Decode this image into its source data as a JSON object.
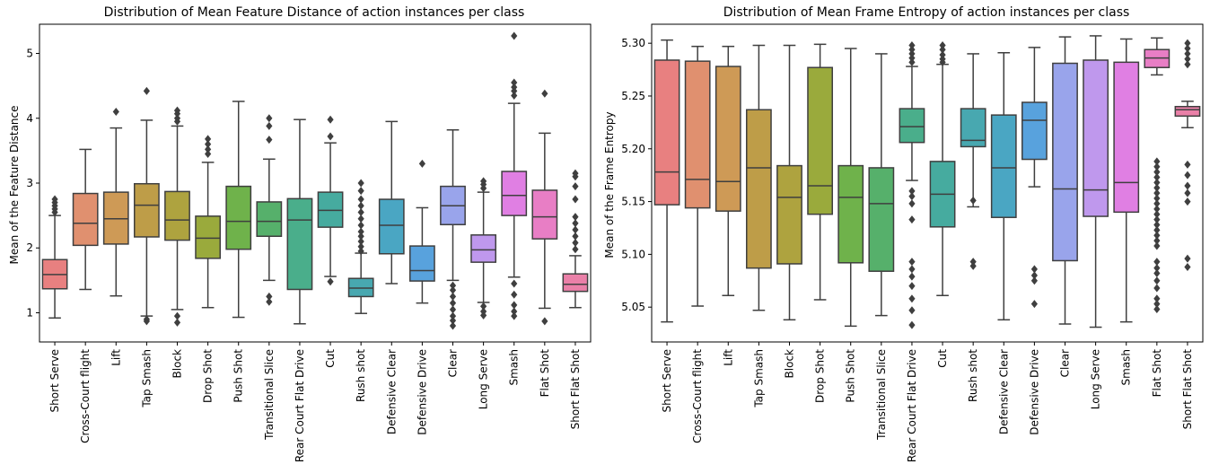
{
  "chart_data": [
    {
      "type": "box",
      "title": "Distribution of Mean Feature Distance of action instances per class",
      "xlabel": "",
      "ylabel": "Mean of the Feature Distance",
      "ylim": [
        0.55,
        5.45
      ],
      "yticks": [
        1,
        2,
        3,
        4,
        5
      ],
      "ytick_labels": [
        "1",
        "2",
        "3",
        "4",
        "5"
      ],
      "grid": false,
      "categories": [
        "Short Serve",
        "Cross-Court flight",
        "Lift",
        "Tap Smash",
        "Block",
        "Drop Shot",
        "Push Shot",
        "Transitional Slice",
        "Rear Court Flat Drive",
        "Cut",
        "Rush shot",
        "Defensive Clear",
        "Defensive Drive",
        "Clear",
        "Long Serve",
        "Smash",
        "Flat Shot",
        "Short Flat Shot"
      ],
      "boxes": [
        {
          "whislo": 0.92,
          "q1": 1.37,
          "med": 1.59,
          "q3": 1.82,
          "whishi": 2.5,
          "fliers": [
            2.55,
            2.6,
            2.65,
            2.7,
            2.75
          ]
        },
        {
          "whislo": 1.36,
          "q1": 2.04,
          "med": 2.38,
          "q3": 2.84,
          "whishi": 3.52,
          "fliers": []
        },
        {
          "whislo": 1.26,
          "q1": 2.06,
          "med": 2.45,
          "q3": 2.86,
          "whishi": 3.85,
          "fliers": [
            4.1
          ]
        },
        {
          "whislo": 0.95,
          "q1": 2.17,
          "med": 2.66,
          "q3": 2.99,
          "whishi": 3.97,
          "fliers": [
            4.42,
            0.9,
            0.87
          ]
        },
        {
          "whislo": 1.05,
          "q1": 2.12,
          "med": 2.43,
          "q3": 2.87,
          "whishi": 3.88,
          "fliers": [
            3.95,
            4.0,
            4.07,
            4.12,
            0.95,
            0.85
          ]
        },
        {
          "whislo": 1.08,
          "q1": 1.84,
          "med": 2.15,
          "q3": 2.49,
          "whishi": 3.32,
          "fliers": [
            3.45,
            3.52,
            3.6,
            3.68
          ]
        },
        {
          "whislo": 0.93,
          "q1": 1.98,
          "med": 2.41,
          "q3": 2.95,
          "whishi": 4.26,
          "fliers": []
        },
        {
          "whislo": 1.5,
          "q1": 2.18,
          "med": 2.41,
          "q3": 2.71,
          "whishi": 3.37,
          "fliers": [
            3.67,
            3.88,
            4.0,
            1.25,
            1.17
          ]
        },
        {
          "whislo": 0.83,
          "q1": 1.36,
          "med": 2.43,
          "q3": 2.76,
          "whishi": 3.98,
          "fliers": []
        },
        {
          "whislo": 1.56,
          "q1": 2.32,
          "med": 2.58,
          "q3": 2.86,
          "whishi": 3.62,
          "fliers": [
            3.72,
            3.98,
            1.48
          ]
        },
        {
          "whislo": 0.99,
          "q1": 1.25,
          "med": 1.38,
          "q3": 1.53,
          "whishi": 1.92,
          "fliers": [
            1.95,
            2.02,
            2.1,
            2.18,
            2.25,
            2.35,
            2.45,
            2.55,
            2.65,
            2.75,
            2.88,
            3.0
          ]
        },
        {
          "whislo": 1.45,
          "q1": 1.91,
          "med": 2.35,
          "q3": 2.75,
          "whishi": 3.95,
          "fliers": []
        },
        {
          "whislo": 1.15,
          "q1": 1.49,
          "med": 1.65,
          "q3": 2.03,
          "whishi": 2.62,
          "fliers": [
            3.3
          ]
        },
        {
          "whislo": 1.5,
          "q1": 2.36,
          "med": 2.65,
          "q3": 2.95,
          "whishi": 3.82,
          "fliers": [
            1.42,
            1.35,
            1.25,
            1.15,
            1.05,
            0.95,
            0.88,
            0.8
          ]
        },
        {
          "whislo": 1.16,
          "q1": 1.78,
          "med": 1.97,
          "q3": 2.2,
          "whishi": 2.86,
          "fliers": [
            2.92,
            2.98,
            3.03,
            1.1,
            1.02,
            0.96
          ]
        },
        {
          "whislo": 1.55,
          "q1": 2.5,
          "med": 2.81,
          "q3": 3.18,
          "whishi": 4.23,
          "fliers": [
            4.35,
            4.42,
            4.48,
            4.55,
            5.27,
            1.45,
            1.28,
            1.12,
            1.02,
            0.95
          ]
        },
        {
          "whislo": 1.07,
          "q1": 2.14,
          "med": 2.48,
          "q3": 2.89,
          "whishi": 3.77,
          "fliers": [
            4.38,
            0.87
          ]
        },
        {
          "whislo": 1.08,
          "q1": 1.33,
          "med": 1.44,
          "q3": 1.6,
          "whishi": 1.88,
          "fliers": [
            1.98,
            2.08,
            2.18,
            2.28,
            2.38,
            2.48,
            2.75,
            2.95,
            3.1,
            3.15
          ]
        }
      ]
    },
    {
      "type": "box",
      "title": "Distribution of Mean Frame Entropy of action instances per class",
      "xlabel": "",
      "ylabel": "Mean of the Frame Entropy",
      "ylim": [
        5.017,
        5.318
      ],
      "yticks": [
        5.05,
        5.1,
        5.15,
        5.2,
        5.25,
        5.3
      ],
      "ytick_labels": [
        "5.05",
        "5.10",
        "5.15",
        "5.20",
        "5.25",
        "5.30"
      ],
      "grid": false,
      "categories": [
        "Short Serve",
        "Cross-Court flight",
        "Lift",
        "Tap Smash",
        "Block",
        "Drop Shot",
        "Push Shot",
        "Transitional Slice",
        "Rear Court Flat Drive",
        "Cut",
        "Rush shot",
        "Defensive Clear",
        "Defensive Drive",
        "Clear",
        "Long Serve",
        "Smash",
        "Flat Shot",
        "Short Flat Shot"
      ],
      "boxes": [
        {
          "whislo": 5.036,
          "q1": 5.147,
          "med": 5.178,
          "q3": 5.284,
          "whishi": 5.303,
          "fliers": []
        },
        {
          "whislo": 5.051,
          "q1": 5.144,
          "med": 5.171,
          "q3": 5.283,
          "whishi": 5.297,
          "fliers": []
        },
        {
          "whislo": 5.061,
          "q1": 5.141,
          "med": 5.169,
          "q3": 5.278,
          "whishi": 5.297,
          "fliers": []
        },
        {
          "whislo": 5.047,
          "q1": 5.087,
          "med": 5.182,
          "q3": 5.237,
          "whishi": 5.298,
          "fliers": []
        },
        {
          "whislo": 5.038,
          "q1": 5.091,
          "med": 5.154,
          "q3": 5.184,
          "whishi": 5.298,
          "fliers": []
        },
        {
          "whislo": 5.057,
          "q1": 5.138,
          "med": 5.165,
          "q3": 5.277,
          "whishi": 5.299,
          "fliers": []
        },
        {
          "whislo": 5.032,
          "q1": 5.092,
          "med": 5.154,
          "q3": 5.184,
          "whishi": 5.295,
          "fliers": []
        },
        {
          "whislo": 5.042,
          "q1": 5.084,
          "med": 5.148,
          "q3": 5.182,
          "whishi": 5.29,
          "fliers": []
        },
        {
          "whislo": 5.17,
          "q1": 5.206,
          "med": 5.221,
          "q3": 5.238,
          "whishi": 5.278,
          "fliers": [
            5.282,
            5.286,
            5.29,
            5.294,
            5.298,
            5.16,
            5.155,
            5.148,
            5.133,
            5.093,
            5.086,
            5.079,
            5.07,
            5.058,
            5.047,
            5.033
          ]
        },
        {
          "whislo": 5.061,
          "q1": 5.126,
          "med": 5.157,
          "q3": 5.188,
          "whishi": 5.28,
          "fliers": [
            5.282,
            5.285,
            5.289,
            5.294,
            5.298
          ]
        },
        {
          "whislo": 5.145,
          "q1": 5.202,
          "med": 5.208,
          "q3": 5.238,
          "whishi": 5.29,
          "fliers": [
            5.151,
            5.093,
            5.089
          ]
        },
        {
          "whislo": 5.038,
          "q1": 5.135,
          "med": 5.182,
          "q3": 5.232,
          "whishi": 5.291,
          "fliers": []
        },
        {
          "whislo": 5.164,
          "q1": 5.19,
          "med": 5.227,
          "q3": 5.244,
          "whishi": 5.296,
          "fliers": [
            5.086,
            5.08,
            5.075,
            5.053
          ]
        },
        {
          "whislo": 5.034,
          "q1": 5.094,
          "med": 5.162,
          "q3": 5.281,
          "whishi": 5.306,
          "fliers": []
        },
        {
          "whislo": 5.031,
          "q1": 5.136,
          "med": 5.161,
          "q3": 5.284,
          "whishi": 5.307,
          "fliers": []
        },
        {
          "whislo": 5.036,
          "q1": 5.14,
          "med": 5.168,
          "q3": 5.282,
          "whishi": 5.304,
          "fliers": []
        },
        {
          "whislo": 5.27,
          "q1": 5.277,
          "med": 5.286,
          "q3": 5.294,
          "whishi": 5.305,
          "fliers": [
            5.188,
            5.183,
            5.178,
            5.173,
            5.168,
            5.163,
            5.158,
            5.153,
            5.148,
            5.143,
            5.138,
            5.133,
            5.128,
            5.123,
            5.118,
            5.113,
            5.108,
            5.093,
            5.087,
            5.082,
            5.075,
            5.068,
            5.058,
            5.053,
            5.048
          ]
        },
        {
          "whislo": 5.22,
          "q1": 5.231,
          "med": 5.237,
          "q3": 5.24,
          "whishi": 5.245,
          "fliers": [
            5.3,
            5.295,
            5.29,
            5.285,
            5.28,
            5.185,
            5.175,
            5.165,
            5.158,
            5.15,
            5.096,
            5.088
          ]
        }
      ]
    }
  ],
  "palette": [
    "#E88080",
    "#E0906F",
    "#CE9A56",
    "#BE9D48",
    "#AEA33F",
    "#9AAA3C",
    "#6FB24B",
    "#56B06B",
    "#4AAE8B",
    "#46AB9F",
    "#48A8B0",
    "#4AA6C3",
    "#58A2DD",
    "#99A4EB",
    "#BF98ED",
    "#E07FE3",
    "#E87EC5",
    "#EA80A8"
  ]
}
